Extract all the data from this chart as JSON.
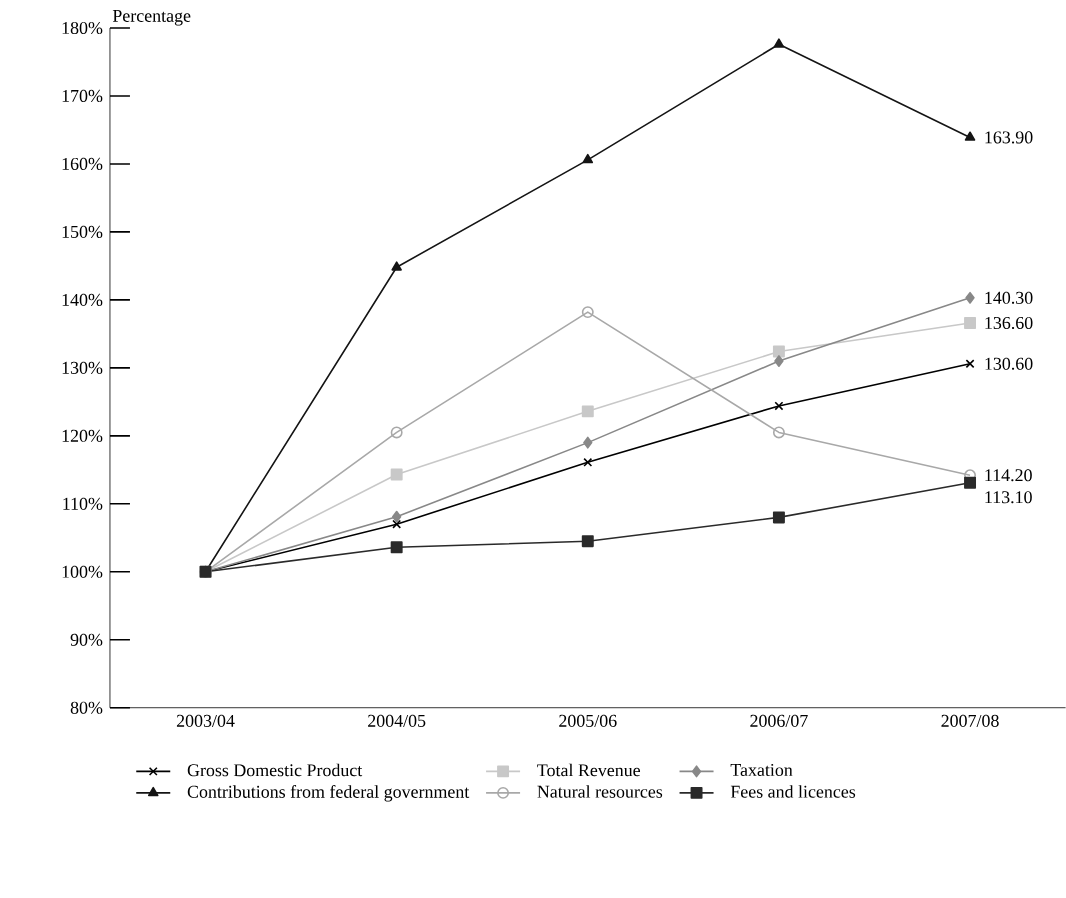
{
  "chart_data": {
    "type": "line",
    "ylabel": "Percentage",
    "categories": [
      "2003/04",
      "2004/05",
      "2005/06",
      "2006/07",
      "2007/08"
    ],
    "series": [
      {
        "name": "Gross Domestic Product",
        "color": "#000000",
        "marker": "cross",
        "values": [
          100,
          107,
          116.1,
          124.4,
          130.6
        ],
        "value_labels": [
          null,
          null,
          null,
          null,
          "130.60"
        ]
      },
      {
        "name": "Total Revenue",
        "color": "#c8c8c8",
        "marker": "square",
        "values": [
          100,
          114.3,
          123.6,
          132.4,
          136.6
        ],
        "value_labels": [
          null,
          null,
          null,
          null,
          "136.60"
        ]
      },
      {
        "name": "Taxation",
        "color": "#888888",
        "marker": "diamond",
        "values": [
          100,
          108.1,
          119,
          131,
          140.3
        ],
        "value_labels": [
          null,
          null,
          null,
          null,
          "140.30"
        ]
      },
      {
        "name": "Contributions from federal government",
        "color": "#141414",
        "marker": "triangle",
        "values": [
          100,
          144.8,
          160.6,
          177.6,
          163.9
        ],
        "value_labels": [
          null,
          null,
          null,
          null,
          "163.90"
        ]
      },
      {
        "name": "Natural resources",
        "color": "#a8a8a8",
        "marker": "circle",
        "values": [
          100,
          120.5,
          138.2,
          120.5,
          114.2
        ],
        "value_labels": [
          null,
          null,
          null,
          null,
          "114.20"
        ]
      },
      {
        "name": "Fees and licences",
        "color": "#2a2a2a",
        "marker": "square",
        "values": [
          100,
          103.6,
          104.5,
          108,
          113.1
        ],
        "value_labels": [
          null,
          null,
          null,
          null,
          "113.10"
        ]
      }
    ],
    "ylim": [
      80,
      180
    ],
    "yticks": [
      {
        "value": 80,
        "label": "80%"
      },
      {
        "value": 90,
        "label": "90%"
      },
      {
        "value": 100,
        "label": "100%"
      },
      {
        "value": 110,
        "label": "110%"
      },
      {
        "value": 120,
        "label": "120%"
      },
      {
        "value": 130,
        "label": "130%"
      },
      {
        "value": 140,
        "label": "140%"
      },
      {
        "value": 150,
        "label": "150%"
      },
      {
        "value": 160,
        "label": "160%"
      },
      {
        "value": 170,
        "label": "170%"
      },
      {
        "value": 180,
        "label": "180%"
      }
    ],
    "legend": "bottom",
    "grid": false,
    "line_style": "solid"
  }
}
